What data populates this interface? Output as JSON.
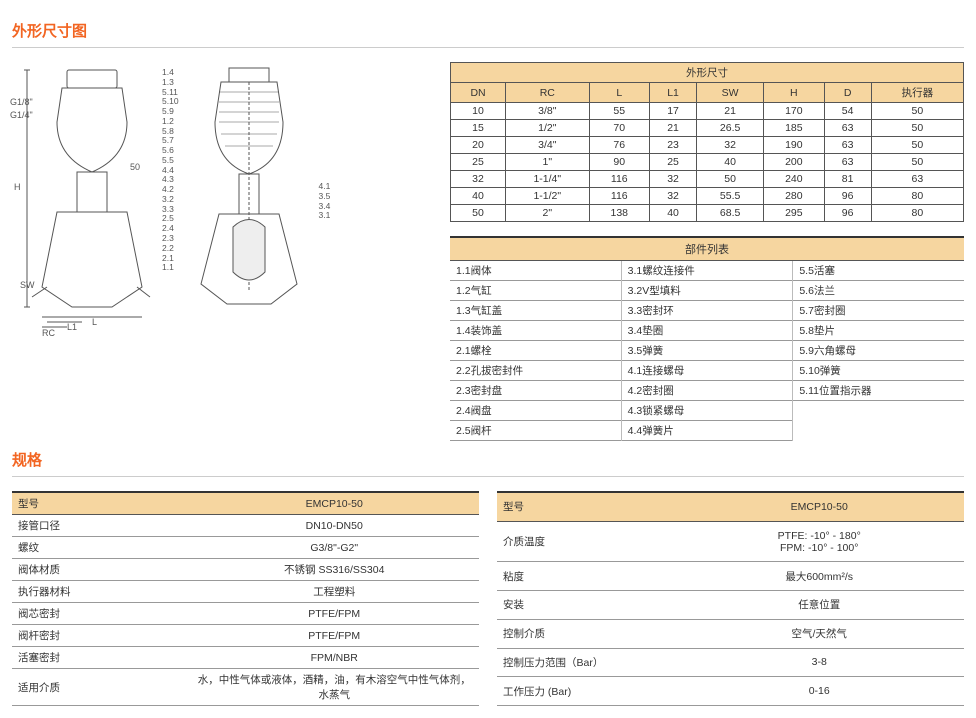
{
  "headings": {
    "dimensions": "外形尺寸图",
    "specs": "规格"
  },
  "dim_table": {
    "super_header": "外形尺寸",
    "columns": [
      "DN",
      "RC",
      "L",
      "L1",
      "SW",
      "H",
      "D",
      "执行器"
    ],
    "rows": [
      [
        "10",
        "3/8\"",
        "55",
        "17",
        "21",
        "170",
        "54",
        "50"
      ],
      [
        "15",
        "1/2\"",
        "70",
        "21",
        "26.5",
        "185",
        "63",
        "50"
      ],
      [
        "20",
        "3/4\"",
        "76",
        "23",
        "32",
        "190",
        "63",
        "50"
      ],
      [
        "25",
        "1\"",
        "90",
        "25",
        "40",
        "200",
        "63",
        "50"
      ],
      [
        "32",
        "1-1/4\"",
        "116",
        "32",
        "50",
        "240",
        "81",
        "63"
      ],
      [
        "40",
        "1-1/2\"",
        "116",
        "32",
        "55.5",
        "280",
        "96",
        "80"
      ],
      [
        "50",
        "2\"",
        "138",
        "40",
        "68.5",
        "295",
        "96",
        "80"
      ]
    ]
  },
  "parts": {
    "header": "部件列表",
    "cols": [
      [
        "1.1阀体",
        "1.2气缸",
        "1.3气缸盖",
        "1.4装饰盖",
        "2.1螺栓",
        "2.2孔拔密封件",
        "2.3密封盘",
        "2.4阀盘",
        "2.5阀杆"
      ],
      [
        "3.1螺纹连接件",
        "3.2V型填料",
        "3.3密封环",
        "3.4垫圈",
        "3.5弹簧",
        "4.1连接螺母",
        "4.2密封圈",
        "4.3锁紧螺母",
        "4.4弹簧片"
      ],
      [
        "5.5活塞",
        "5.6法兰",
        "5.7密封圈",
        "5.8垫片",
        "5.9六角螺母",
        "5.10弹簧",
        "5.11位置指示器"
      ]
    ]
  },
  "spec_left": {
    "hdr": [
      "型号",
      "EMCP10-50"
    ],
    "rows": [
      [
        "接管口径",
        "DN10-DN50"
      ],
      [
        "螺纹",
        "G3/8\"-G2\""
      ],
      [
        "阀体材质",
        "不锈钢 SS316/SS304"
      ],
      [
        "执行器材料",
        "工程塑料"
      ],
      [
        "阀芯密封",
        "PTFE/FPM"
      ],
      [
        "阀杆密封",
        "PTFE/FPM"
      ],
      [
        "活塞密封",
        "FPM/NBR"
      ],
      [
        "适用介质",
        "水，中性气体或液体，酒精，油，有木溶空气中性气体剂，水蒸气"
      ]
    ]
  },
  "spec_right": {
    "hdr": [
      "型号",
      "EMCP10-50"
    ],
    "rows": [
      [
        "介质温度",
        "PTFE: -10° - 180°\nFPM: -10° - 100°"
      ],
      [
        "粘度",
        "最大600mm²/s"
      ],
      [
        "安装",
        "任意位置"
      ],
      [
        "控制介质",
        "空气/天然气"
      ],
      [
        "控制压力范围（Bar）",
        "3-8"
      ],
      [
        "工作压力 (Bar)",
        "0-16"
      ]
    ]
  },
  "diagram_callouts_left": [
    "1.4",
    "1.3",
    "5.11",
    "5.10",
    "5.9",
    "1.2",
    "5.8",
    "5.7",
    "5.6",
    "5.5",
    "4.4",
    "4.3",
    "4.2",
    "3.2",
    "3.3",
    "2.5",
    "2.4",
    "2.3",
    "2.2",
    "2.1",
    "1.1"
  ],
  "diagram_callouts_right": [
    "4.1",
    "3.5",
    "3.4",
    "3.1"
  ],
  "diagram_dim_labels": {
    "g18": "G1/8\"",
    "g14": "G1/4\"",
    "h": "H",
    "sw": "SW",
    "rc": "RC",
    "l1": "L1",
    "l": "L",
    "fifty": "50"
  }
}
